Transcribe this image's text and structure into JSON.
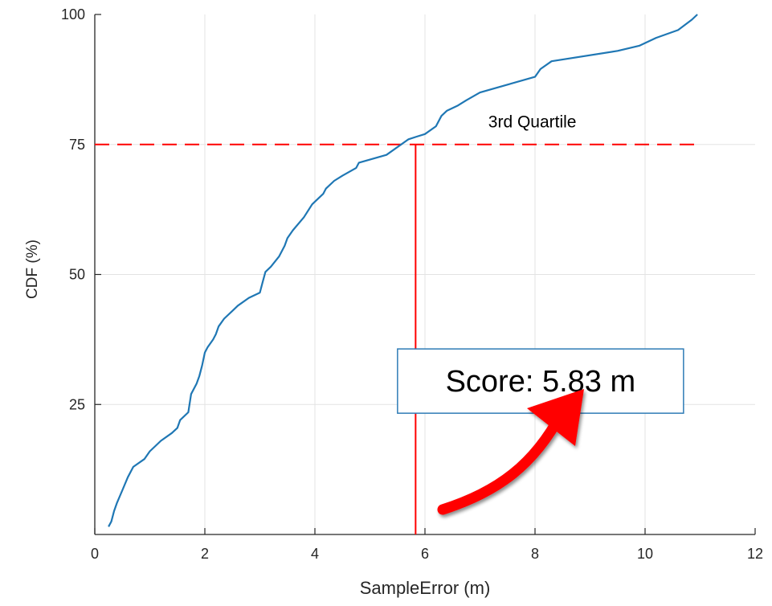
{
  "chart_data": {
    "type": "line",
    "title": "",
    "xlabel": "SampleError (m)",
    "ylabel": "CDF (%)",
    "xlim": [
      0,
      12
    ],
    "ylim": [
      0,
      100
    ],
    "x_ticks": [
      0,
      2,
      4,
      6,
      8,
      10,
      12
    ],
    "y_ticks": [
      25,
      50,
      75,
      100
    ],
    "grid": true,
    "series": [
      {
        "color": "#1f77b4",
        "x": [
          0.25,
          0.3,
          0.35,
          0.4,
          0.5,
          0.6,
          0.7,
          0.9,
          1.0,
          1.1,
          1.2,
          1.4,
          1.5,
          1.55,
          1.7,
          1.75,
          1.85,
          1.9,
          1.95,
          2.0,
          2.05,
          2.15,
          2.2,
          2.25,
          2.35,
          2.5,
          2.6,
          2.8,
          3.0,
          3.05,
          3.1,
          3.2,
          3.35,
          3.45,
          3.5,
          3.6,
          3.8,
          3.95,
          4.0,
          4.15,
          4.2,
          4.35,
          4.5,
          4.75,
          4.8,
          5.3,
          5.7,
          5.85,
          6.0,
          6.2,
          6.3,
          6.4,
          6.6,
          6.75,
          7.0,
          7.5,
          8.0,
          8.1,
          8.3,
          9.5,
          9.9,
          10.2,
          10.6,
          10.85,
          10.95
        ],
        "y": [
          1.5,
          2.5,
          4.5,
          6,
          8.5,
          11,
          13,
          14.5,
          16,
          17,
          18,
          19.5,
          20.5,
          22,
          23.5,
          27,
          29,
          30.5,
          32.5,
          35,
          36,
          37.5,
          38.5,
          40,
          41.5,
          43,
          44,
          45.5,
          46.5,
          48.5,
          50.5,
          51.5,
          53.5,
          55.5,
          57,
          58.5,
          61,
          63.5,
          64,
          65.5,
          66.5,
          68,
          69,
          70.5,
          71.5,
          73,
          76,
          76.5,
          77,
          78.5,
          80.5,
          81.5,
          82.5,
          83.5,
          85,
          86.5,
          88,
          89.5,
          91,
          93,
          94,
          95.5,
          97,
          99,
          100
        ]
      }
    ],
    "annotations": [
      {
        "text": "3rd Quartile",
        "x": 7.15,
        "y": 79.5
      },
      {
        "text": "Score: 5.83 m",
        "x": 8.1,
        "y": 29.5
      }
    ],
    "reference_lines": {
      "quartile_y": 75,
      "score_x": 5.83,
      "color": "#ff0000"
    },
    "arrow_color": "#ff0000"
  }
}
